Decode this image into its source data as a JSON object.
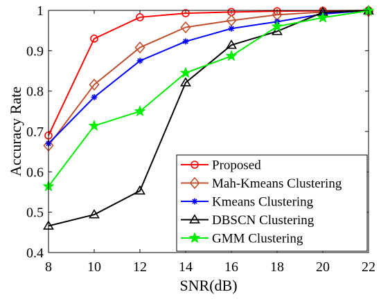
{
  "chart_data": {
    "type": "line",
    "xlabel": "SNR(dB)",
    "ylabel": "Accuracy Rate",
    "xlim": [
      8,
      22
    ],
    "ylim": [
      0.4,
      1.0
    ],
    "xticks": [
      "8",
      "10",
      "12",
      "14",
      "16",
      "18",
      "20",
      "22"
    ],
    "yticks": [
      "0.4",
      "0.5",
      "0.6",
      "0.7",
      "0.8",
      "0.9",
      "1"
    ],
    "x": [
      8,
      10,
      12,
      14,
      16,
      18,
      20,
      22
    ],
    "grid": false,
    "legend_position": "bottom-right",
    "series": [
      {
        "name": "Proposed",
        "color": "#ff0000",
        "marker": "circle",
        "values": [
          0.69,
          0.93,
          0.983,
          0.993,
          0.996,
          0.998,
          0.999,
          1.0
        ]
      },
      {
        "name": "Mah-Kmeans Clustering",
        "color": "#c0502d",
        "marker": "diamond",
        "values": [
          0.665,
          0.816,
          0.908,
          0.958,
          0.975,
          0.989,
          0.996,
          0.998
        ]
      },
      {
        "name": "Kmeans Clustering",
        "color": "#0000ff",
        "marker": "asterisk",
        "values": [
          0.67,
          0.785,
          0.875,
          0.923,
          0.955,
          0.972,
          0.991,
          1.0
        ]
      },
      {
        "name": "DBSCN Clustering",
        "color": "#000000",
        "marker": "triangle",
        "values": [
          0.466,
          0.494,
          0.553,
          0.821,
          0.914,
          0.948,
          0.995,
          0.999
        ]
      },
      {
        "name": "GMM Clustering",
        "color": "#00ee00",
        "marker": "star",
        "values": [
          0.564,
          0.714,
          0.75,
          0.845,
          0.887,
          0.96,
          0.982,
          0.999
        ]
      }
    ]
  }
}
